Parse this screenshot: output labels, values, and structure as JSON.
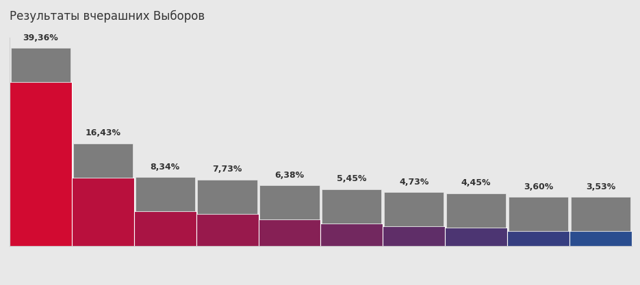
{
  "chart_data": {
    "type": "bar",
    "title": "Результаты вчерашних Выборов",
    "categories": [
      null,
      null,
      null,
      null,
      null,
      null,
      null,
      null,
      null,
      null
    ],
    "values": [
      39.36,
      16.43,
      8.34,
      7.73,
      6.38,
      5.45,
      4.73,
      4.45,
      3.6,
      3.53
    ],
    "value_labels": [
      "39,36%",
      "16,43%",
      "8,34%",
      "7,73%",
      "6,38%",
      "5,45%",
      "4,73%",
      "4,45%",
      "3,60%",
      "3,53%"
    ],
    "colors": [
      "#d20a31",
      "#b9103d",
      "#a91444",
      "#98194c",
      "#862055",
      "#72285f",
      "#5f2e68",
      "#4c3572",
      "#363e80",
      "#2a4d8f"
    ],
    "ylim": [
      0,
      50
    ],
    "data_labels": true,
    "tick_labels": false
  }
}
